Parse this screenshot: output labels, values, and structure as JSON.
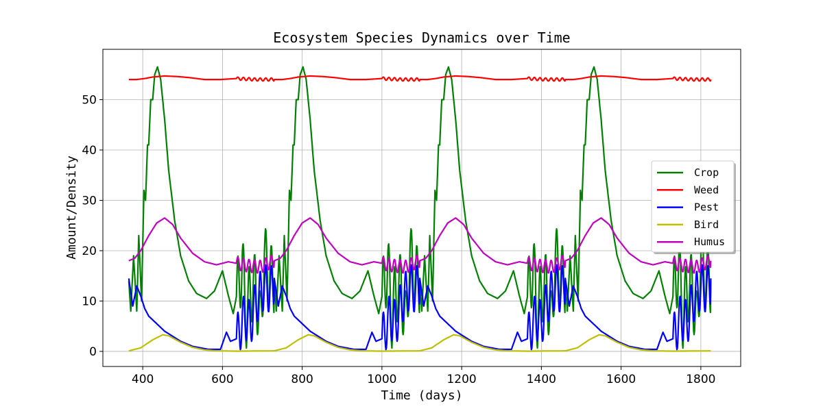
{
  "chart_data": {
    "type": "line",
    "title": "Ecosystem Species Dynamics over Time",
    "xlabel": "Time (days)",
    "ylabel": "Amount/Density",
    "xlim": [
      300,
      1900
    ],
    "ylim": [
      -3,
      60
    ],
    "xticks": [
      400,
      600,
      800,
      1000,
      1200,
      1400,
      1600,
      1800
    ],
    "yticks": [
      0,
      10,
      20,
      30,
      40,
      50
    ],
    "grid": true,
    "legend_position": "center-right",
    "x_range": [
      365,
      1825
    ],
    "period_days": 365,
    "series": [
      {
        "name": "Crop",
        "color": "#008000",
        "envelope": [
          [
            0,
            14
          ],
          [
            5,
            8
          ],
          [
            12,
            19
          ],
          [
            20,
            8
          ],
          [
            25,
            23
          ],
          [
            32,
            10
          ],
          [
            38,
            32
          ],
          [
            42,
            30
          ],
          [
            47,
            41
          ],
          [
            50,
            41
          ],
          [
            55,
            50
          ],
          [
            60,
            50
          ],
          [
            65,
            55
          ],
          [
            72,
            56.5
          ],
          [
            80,
            54
          ],
          [
            90,
            46
          ],
          [
            100,
            36
          ],
          [
            115,
            26
          ],
          [
            130,
            19
          ],
          [
            150,
            14
          ],
          [
            170,
            11.5
          ],
          [
            195,
            10.5
          ],
          [
            215,
            12
          ],
          [
            235,
            16
          ],
          [
            250,
            11
          ],
          [
            262,
            7.5
          ],
          [
            275,
            13
          ],
          [
            285,
            17
          ],
          [
            295,
            7
          ],
          [
            305,
            12
          ],
          [
            318,
            13
          ],
          [
            330,
            5
          ],
          [
            340,
            19
          ],
          [
            352,
            15
          ],
          [
            365,
            14
          ]
        ],
        "oscillation": {
          "from_day": 270,
          "to_day": 365,
          "amplitude": 6.5,
          "period_days": 14
        }
      },
      {
        "name": "Weed",
        "color": "#ff0000",
        "envelope": [
          [
            0,
            54
          ],
          [
            20,
            54
          ],
          [
            40,
            54.2
          ],
          [
            60,
            54.5
          ],
          [
            90,
            54.7
          ],
          [
            120,
            54.6
          ],
          [
            150,
            54.4
          ],
          [
            190,
            54.0
          ],
          [
            230,
            54.0
          ],
          [
            270,
            54.2
          ],
          [
            320,
            54.0
          ],
          [
            365,
            54.0
          ]
        ],
        "oscillation": {
          "from_day": 270,
          "to_day": 365,
          "amplitude": 0.3,
          "period_days": 14
        }
      },
      {
        "name": "Pest",
        "color": "#0000ff",
        "envelope": [
          [
            0,
            14.5
          ],
          [
            10,
            9
          ],
          [
            20,
            13
          ],
          [
            30,
            11
          ],
          [
            40,
            8.5
          ],
          [
            50,
            7
          ],
          [
            70,
            5.5
          ],
          [
            90,
            4
          ],
          [
            110,
            3
          ],
          [
            130,
            2
          ],
          [
            160,
            1
          ],
          [
            200,
            0.4
          ],
          [
            230,
            0.4
          ],
          [
            245,
            3.8
          ],
          [
            255,
            2
          ],
          [
            270,
            2.5
          ],
          [
            290,
            7
          ],
          [
            305,
            5.5
          ],
          [
            320,
            10
          ],
          [
            340,
            13
          ],
          [
            355,
            12
          ],
          [
            365,
            14
          ]
        ],
        "oscillation": {
          "from_day": 270,
          "to_day": 365,
          "amplitude": 4.5,
          "period_days": 14
        }
      },
      {
        "name": "Bird",
        "color": "#bfbf00",
        "envelope": [
          [
            0,
            0.1
          ],
          [
            30,
            0.7
          ],
          [
            60,
            2.3
          ],
          [
            85,
            3.3
          ],
          [
            100,
            3.1
          ],
          [
            130,
            1.8
          ],
          [
            160,
            0.8
          ],
          [
            190,
            0.3
          ],
          [
            220,
            0.1
          ],
          [
            270,
            0.05
          ],
          [
            365,
            0.1
          ]
        ],
        "oscillation": {
          "from_day": 0,
          "to_day": 0,
          "amplitude": 0,
          "period_days": 14
        }
      },
      {
        "name": "Humus",
        "color": "#bf00bf",
        "envelope": [
          [
            0,
            18
          ],
          [
            15,
            18.5
          ],
          [
            30,
            20
          ],
          [
            50,
            23
          ],
          [
            70,
            25.5
          ],
          [
            90,
            26.5
          ],
          [
            110,
            25.2
          ],
          [
            130,
            22.5
          ],
          [
            160,
            19.5
          ],
          [
            190,
            17.8
          ],
          [
            220,
            17.2
          ],
          [
            250,
            17.8
          ],
          [
            270,
            17.5
          ],
          [
            300,
            17
          ],
          [
            330,
            16.8
          ],
          [
            350,
            17.5
          ],
          [
            365,
            18
          ]
        ],
        "oscillation": {
          "from_day": 270,
          "to_day": 365,
          "amplitude": 1.3,
          "period_days": 14
        }
      }
    ]
  }
}
